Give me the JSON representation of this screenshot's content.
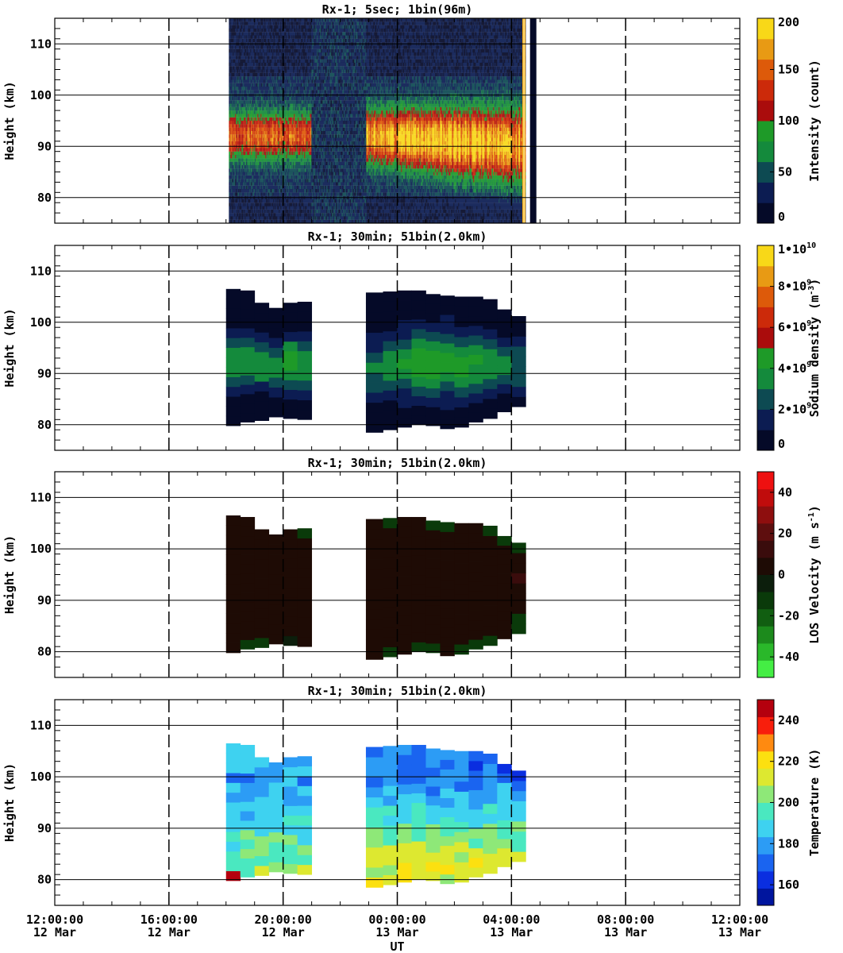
{
  "figure": {
    "xlabel": "UT",
    "x_ticks": [
      {
        "time": "12:00:00",
        "date": "12 Mar"
      },
      {
        "time": "16:00:00",
        "date": "12 Mar"
      },
      {
        "time": "20:00:00",
        "date": "12 Mar"
      },
      {
        "time": "00:00:00",
        "date": "13 Mar"
      },
      {
        "time": "04:00:00",
        "date": "13 Mar"
      },
      {
        "time": "08:00:00",
        "date": "13 Mar"
      },
      {
        "time": "12:00:00",
        "date": "13 Mar"
      }
    ]
  },
  "chart_data": [
    {
      "type": "heatmap",
      "title": "Rx-1;  5sec; 1bin(96m)",
      "ylabel": "Height (km)",
      "xlabel": "UT",
      "xlim_hours_ut": [
        12,
        36
      ],
      "ylim": [
        75,
        115
      ],
      "y_ticks": [
        80,
        90,
        100,
        110
      ],
      "data_coverage_hours_ut": [
        [
          18.1,
          28.5
        ]
      ],
      "colorbar": {
        "label": "Intensity (count)",
        "range": [
          0,
          200
        ],
        "ticks": [
          "0",
          "50",
          "100",
          "150",
          "200"
        ],
        "colors": [
          "#050a28",
          "#0c1c52",
          "#0d4a52",
          "#148a3c",
          "#1e9a28",
          "#aa0c0c",
          "#cc2a0a",
          "#dd5a0a",
          "#e89a14",
          "#f8d818"
        ]
      },
      "features": [
        {
          "desc": "sodium layer peak",
          "hours_ut": [
            18.1,
            21.0
          ],
          "height_km": [
            86,
            96
          ],
          "value": 130
        },
        {
          "desc": "sodium layer peak",
          "hours_ut": [
            22.9,
            27.7
          ],
          "height_km": [
            85,
            98
          ],
          "value": 160
        }
      ]
    },
    {
      "type": "heatmap",
      "title": "Rx-1; 30min; 51bin(2.0km)",
      "ylabel": "Height (km)",
      "xlabel": "UT",
      "xlim_hours_ut": [
        12,
        36
      ],
      "ylim": [
        75,
        115
      ],
      "y_ticks": [
        80,
        90,
        100,
        110
      ],
      "colorbar": {
        "label": "Sodium density (m^-3)",
        "label_parts": [
          "Sodium density (m",
          "-3",
          ")"
        ],
        "range": [
          0,
          10000000000.0
        ],
        "ticks": [
          {
            "text": "0",
            "sup": ""
          },
          {
            "text": "2•10",
            "sup": "9"
          },
          {
            "text": "4•10",
            "sup": "9"
          },
          {
            "text": "6•10",
            "sup": "9"
          },
          {
            "text": "8•10",
            "sup": "9"
          },
          {
            "text": "1•10",
            "sup": "10"
          }
        ],
        "colors": [
          "#050a28",
          "#0c1c52",
          "#0d4a52",
          "#148a3c",
          "#1e9a28",
          "#aa0c0c",
          "#cc2a0a",
          "#dd5a0a",
          "#e89a14",
          "#f8d818"
        ]
      },
      "profiles": {
        "bins_hours_ut": [
          [
            18.0,
            18.5
          ],
          [
            18.5,
            19.0
          ],
          [
            19.0,
            19.5
          ],
          [
            19.5,
            20.0
          ],
          [
            20.0,
            20.5
          ],
          [
            20.5,
            21.0
          ],
          [
            22.9,
            23.5
          ],
          [
            23.5,
            24.0
          ],
          [
            24.0,
            24.5
          ],
          [
            24.5,
            25.0
          ],
          [
            25.0,
            25.5
          ],
          [
            25.5,
            26.0
          ],
          [
            26.0,
            26.5
          ],
          [
            26.5,
            27.0
          ],
          [
            27.0,
            27.5
          ],
          [
            27.5,
            28.0
          ],
          [
            28.0,
            28.5
          ]
        ],
        "bottom_km": [
          79.8,
          80.5,
          80.8,
          81.5,
          81.2,
          81.0,
          78.5,
          79.0,
          79.5,
          80.0,
          79.8,
          79.2,
          79.5,
          80.5,
          81.2,
          82.5,
          83.5
        ],
        "top_km": [
          106.5,
          106.2,
          103.8,
          102.8,
          103.8,
          104.0,
          105.8,
          106.0,
          106.2,
          106.2,
          105.5,
          105.2,
          105.0,
          105.0,
          104.5,
          102.5,
          101.2
        ],
        "peak_km": [
          92.5,
          92.0,
          91.5,
          91.0,
          92.0,
          92.0,
          91.0,
          91.5,
          92.0,
          92.0,
          92.0,
          92.0,
          92.0,
          92.0,
          91.5,
          91.5,
          91.5
        ],
        "peak_density": [
          3800000000.0,
          3800000000.0,
          3500000000.0,
          3300000000.0,
          4200000000.0,
          3800000000.0,
          3200000000.0,
          3600000000.0,
          4000000000.0,
          4300000000.0,
          4300000000.0,
          4300000000.0,
          4200000000.0,
          4000000000.0,
          3400000000.0,
          3000000000.0,
          2800000000.0
        ],
        "half_width_km": [
          6,
          6,
          5.5,
          5.5,
          6,
          6,
          6,
          6.5,
          7,
          7.5,
          7.5,
          7.5,
          7,
          7,
          6.5,
          6,
          5.5
        ]
      }
    },
    {
      "type": "heatmap",
      "title": "Rx-1; 30min; 51bin(2.0km)",
      "ylabel": "Height (km)",
      "xlabel": "UT",
      "xlim_hours_ut": [
        12,
        36
      ],
      "ylim": [
        75,
        115
      ],
      "y_ticks": [
        80,
        90,
        100,
        110
      ],
      "colorbar": {
        "label": "LOS Velocity (m s^-1)",
        "label_parts": [
          "LOS Velocity (m s",
          "-1",
          ")"
        ],
        "range": [
          -50,
          50
        ],
        "ticks": [
          "-40",
          "-20",
          "0",
          "20",
          "40"
        ],
        "colors": [
          "#44ee44",
          "#2ab82a",
          "#1c8a1c",
          "#115e11",
          "#0a3a0a",
          "#0c1e0c",
          "#1e0b05",
          "#3a0c0c",
          "#5e0e0e",
          "#8e0e0e",
          "#c00c0c",
          "#ee1010"
        ]
      },
      "profiles": {
        "bins_hours_ut": [
          [
            18.0,
            18.5
          ],
          [
            18.5,
            19.0
          ],
          [
            19.0,
            19.5
          ],
          [
            19.5,
            20.0
          ],
          [
            20.0,
            20.5
          ],
          [
            20.5,
            21.0
          ],
          [
            22.9,
            23.5
          ],
          [
            23.5,
            24.0
          ],
          [
            24.0,
            24.5
          ],
          [
            24.5,
            25.0
          ],
          [
            25.0,
            25.5
          ],
          [
            25.5,
            26.0
          ],
          [
            26.0,
            26.5
          ],
          [
            26.5,
            27.0
          ],
          [
            27.0,
            27.5
          ],
          [
            27.5,
            28.0
          ],
          [
            28.0,
            28.5
          ]
        ],
        "bottom_km": [
          79.8,
          80.5,
          80.8,
          81.5,
          81.2,
          81.0,
          78.5,
          79.0,
          79.5,
          80.0,
          79.8,
          79.2,
          79.5,
          80.5,
          81.2,
          82.5,
          83.5
        ],
        "top_km": [
          106.5,
          106.2,
          103.8,
          102.8,
          103.8,
          104.0,
          105.8,
          106.0,
          106.2,
          106.2,
          105.5,
          105.2,
          105.0,
          105.0,
          104.5,
          102.5,
          101.2
        ],
        "typical_velocity_ms": 2
      }
    },
    {
      "type": "heatmap",
      "title": "Rx-1; 30min; 51bin(2.0km)",
      "ylabel": "Height (km)",
      "xlabel": "UT",
      "xlim_hours_ut": [
        12,
        36
      ],
      "ylim": [
        75,
        115
      ],
      "y_ticks": [
        80,
        90,
        100,
        110
      ],
      "colorbar": {
        "label": "Temperature (K)",
        "range": [
          150,
          250
        ],
        "ticks": [
          "160",
          "180",
          "200",
          "220",
          "240"
        ],
        "colors": [
          "#00159e",
          "#0a2ee0",
          "#1a64f0",
          "#2c9cf5",
          "#3ed2f0",
          "#4ae8c0",
          "#8ee878",
          "#dde830",
          "#fce010",
          "#ff8a10",
          "#f81e0c",
          "#b4000e"
        ]
      },
      "profiles": {
        "bins_hours_ut": [
          [
            18.0,
            18.5
          ],
          [
            18.5,
            19.0
          ],
          [
            19.0,
            19.5
          ],
          [
            19.5,
            20.0
          ],
          [
            20.0,
            20.5
          ],
          [
            20.5,
            21.0
          ],
          [
            22.9,
            23.5
          ],
          [
            23.5,
            24.0
          ],
          [
            24.0,
            24.5
          ],
          [
            24.5,
            25.0
          ],
          [
            25.0,
            25.5
          ],
          [
            25.5,
            26.0
          ],
          [
            26.0,
            26.5
          ],
          [
            26.5,
            27.0
          ],
          [
            27.0,
            27.5
          ],
          [
            27.5,
            28.0
          ],
          [
            28.0,
            28.5
          ]
        ],
        "bottom_km": [
          79.8,
          80.5,
          80.8,
          81.5,
          81.2,
          81.0,
          78.5,
          79.0,
          79.5,
          80.0,
          79.8,
          79.2,
          79.5,
          80.5,
          81.2,
          82.5,
          83.5
        ],
        "top_km": [
          106.5,
          106.2,
          103.8,
          102.8,
          103.8,
          104.0,
          105.8,
          106.0,
          106.2,
          106.2,
          105.5,
          105.2,
          105.0,
          105.0,
          104.5,
          102.5,
          101.2
        ],
        "temperature_K_by_height_km": {
          "heights": [
            80,
            85,
            90,
            95,
            100,
            105
          ],
          "cols_18_21": [
            205,
            200,
            192,
            185,
            178,
            190
          ],
          "cols_23_28.5": [
            215,
            210,
            198,
            185,
            172,
            175
          ]
        }
      }
    }
  ]
}
